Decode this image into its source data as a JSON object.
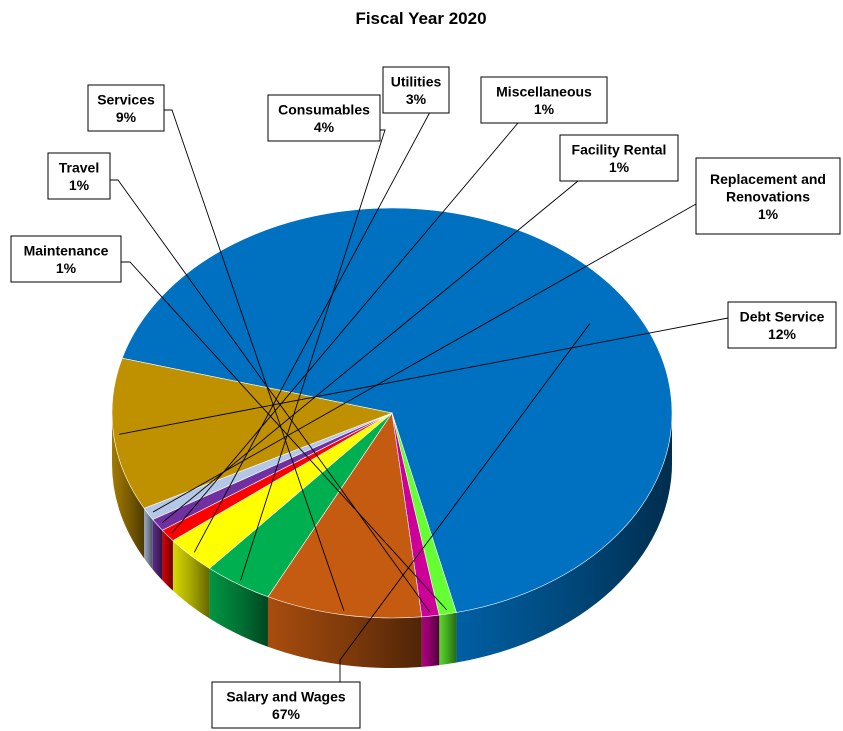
{
  "chart_data": {
    "type": "pie",
    "title": "Fiscal Year 2020",
    "three_d": true,
    "legend": "none",
    "slices": [
      {
        "label": "Salary and Wages",
        "value": 67,
        "value_label": "67%",
        "color": "#0070C0"
      },
      {
        "label": "Maintenance",
        "value": 1,
        "value_label": "1%",
        "color": "#66FF33"
      },
      {
        "label": "Travel",
        "value": 1,
        "value_label": "1%",
        "color": "#CC0099"
      },
      {
        "label": "Services",
        "value": 9,
        "value_label": "9%",
        "color": "#C55A11"
      },
      {
        "label": "Consumables",
        "value": 4,
        "value_label": "4%",
        "color": "#00B050"
      },
      {
        "label": "Utilities",
        "value": 3,
        "value_label": "3%",
        "color": "#FFFF00"
      },
      {
        "label": "Miscellaneous",
        "value": 1,
        "value_label": "1%",
        "color": "#FF0000"
      },
      {
        "label": "Facility Rental",
        "value": 1,
        "value_label": "1%",
        "color": "#7030A0"
      },
      {
        "label": "Replacement and Renovations",
        "value": 1,
        "value_label": "1%",
        "color": "#B4C7E7"
      },
      {
        "label": "Debt Service",
        "value": 12,
        "value_label": "12%",
        "color": "#BF9000"
      }
    ]
  }
}
